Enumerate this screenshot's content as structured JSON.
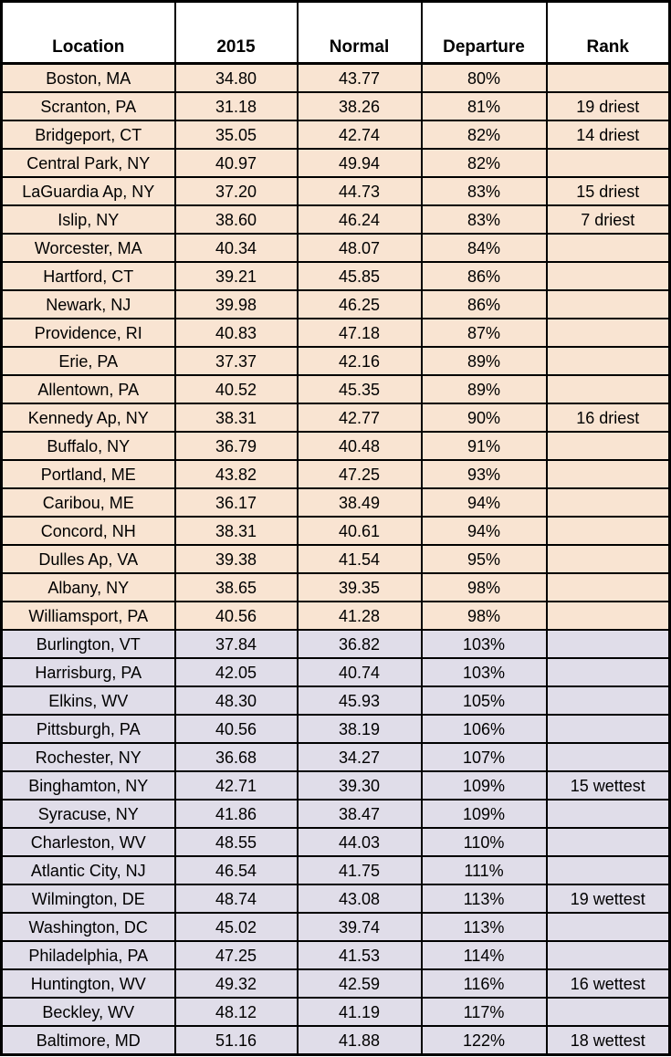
{
  "colors": {
    "dry_row_bg": "#f9e4d2",
    "wet_row_bg": "#e0dde9",
    "header_bg": "#ffffff",
    "border": "#000000",
    "text": "#000000"
  },
  "chart_data": {
    "type": "table",
    "columns": [
      "Location",
      "2015",
      "Normal",
      "Departure",
      "Rank"
    ],
    "rows": [
      {
        "group": "dry",
        "cells": [
          "Boston, MA",
          "34.80",
          "43.77",
          "80%",
          ""
        ]
      },
      {
        "group": "dry",
        "cells": [
          "Scranton, PA",
          "31.18",
          "38.26",
          "81%",
          "19 driest"
        ]
      },
      {
        "group": "dry",
        "cells": [
          "Bridgeport, CT",
          "35.05",
          "42.74",
          "82%",
          "14 driest"
        ]
      },
      {
        "group": "dry",
        "cells": [
          "Central Park, NY",
          "40.97",
          "49.94",
          "82%",
          ""
        ]
      },
      {
        "group": "dry",
        "cells": [
          "LaGuardia Ap, NY",
          "37.20",
          "44.73",
          "83%",
          "15 driest"
        ]
      },
      {
        "group": "dry",
        "cells": [
          "Islip, NY",
          "38.60",
          "46.24",
          "83%",
          "7 driest"
        ]
      },
      {
        "group": "dry",
        "cells": [
          "Worcester, MA",
          "40.34",
          "48.07",
          "84%",
          ""
        ]
      },
      {
        "group": "dry",
        "cells": [
          "Hartford, CT",
          "39.21",
          "45.85",
          "86%",
          ""
        ]
      },
      {
        "group": "dry",
        "cells": [
          "Newark, NJ",
          "39.98",
          "46.25",
          "86%",
          ""
        ]
      },
      {
        "group": "dry",
        "cells": [
          "Providence, RI",
          "40.83",
          "47.18",
          "87%",
          ""
        ]
      },
      {
        "group": "dry",
        "cells": [
          "Erie, PA",
          "37.37",
          "42.16",
          "89%",
          ""
        ]
      },
      {
        "group": "dry",
        "cells": [
          "Allentown, PA",
          "40.52",
          "45.35",
          "89%",
          ""
        ]
      },
      {
        "group": "dry",
        "cells": [
          "Kennedy Ap, NY",
          "38.31",
          "42.77",
          "90%",
          "16 driest"
        ]
      },
      {
        "group": "dry",
        "cells": [
          "Buffalo, NY",
          "36.79",
          "40.48",
          "91%",
          ""
        ]
      },
      {
        "group": "dry",
        "cells": [
          "Portland, ME",
          "43.82",
          "47.25",
          "93%",
          ""
        ]
      },
      {
        "group": "dry",
        "cells": [
          "Caribou, ME",
          "36.17",
          "38.49",
          "94%",
          ""
        ]
      },
      {
        "group": "dry",
        "cells": [
          "Concord, NH",
          "38.31",
          "40.61",
          "94%",
          ""
        ]
      },
      {
        "group": "dry",
        "cells": [
          "Dulles Ap, VA",
          "39.38",
          "41.54",
          "95%",
          ""
        ]
      },
      {
        "group": "dry",
        "cells": [
          "Albany, NY",
          "38.65",
          "39.35",
          "98%",
          ""
        ]
      },
      {
        "group": "dry",
        "cells": [
          "Williamsport, PA",
          "40.56",
          "41.28",
          "98%",
          ""
        ]
      },
      {
        "group": "wet",
        "cells": [
          "Burlington, VT",
          "37.84",
          "36.82",
          "103%",
          ""
        ]
      },
      {
        "group": "wet",
        "cells": [
          "Harrisburg, PA",
          "42.05",
          "40.74",
          "103%",
          ""
        ]
      },
      {
        "group": "wet",
        "cells": [
          "Elkins, WV",
          "48.30",
          "45.93",
          "105%",
          ""
        ]
      },
      {
        "group": "wet",
        "cells": [
          "Pittsburgh, PA",
          "40.56",
          "38.19",
          "106%",
          ""
        ]
      },
      {
        "group": "wet",
        "cells": [
          "Rochester, NY",
          "36.68",
          "34.27",
          "107%",
          ""
        ]
      },
      {
        "group": "wet",
        "cells": [
          "Binghamton, NY",
          "42.71",
          "39.30",
          "109%",
          "15 wettest"
        ]
      },
      {
        "group": "wet",
        "cells": [
          "Syracuse, NY",
          "41.86",
          "38.47",
          "109%",
          ""
        ]
      },
      {
        "group": "wet",
        "cells": [
          "Charleston, WV",
          "48.55",
          "44.03",
          "110%",
          ""
        ]
      },
      {
        "group": "wet",
        "cells": [
          "Atlantic City, NJ",
          "46.54",
          "41.75",
          "111%",
          ""
        ]
      },
      {
        "group": "wet",
        "cells": [
          "Wilmington, DE",
          "48.74",
          "43.08",
          "113%",
          "19 wettest"
        ]
      },
      {
        "group": "wet",
        "cells": [
          "Washington, DC",
          "45.02",
          "39.74",
          "113%",
          ""
        ]
      },
      {
        "group": "wet",
        "cells": [
          "Philadelphia, PA",
          "47.25",
          "41.53",
          "114%",
          ""
        ]
      },
      {
        "group": "wet",
        "cells": [
          "Huntington, WV",
          "49.32",
          "42.59",
          "116%",
          "16 wettest"
        ]
      },
      {
        "group": "wet",
        "cells": [
          "Beckley, WV",
          "48.12",
          "41.19",
          "117%",
          ""
        ]
      },
      {
        "group": "wet",
        "cells": [
          "Baltimore, MD",
          "51.16",
          "41.88",
          "122%",
          "18 wettest"
        ]
      }
    ]
  }
}
